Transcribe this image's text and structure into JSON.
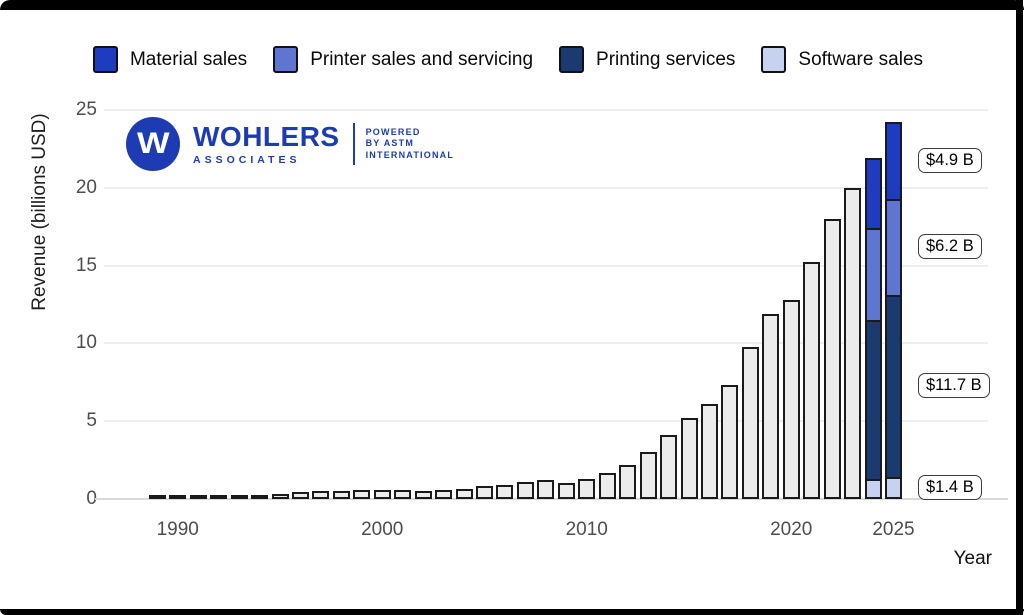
{
  "frame": {
    "border_color": "#000000",
    "background": "#ffffff"
  },
  "legend": {
    "items": [
      {
        "label": "Material sales",
        "color": "#1e3cbf"
      },
      {
        "label": "Printer sales and servicing",
        "color": "#5e76d2"
      },
      {
        "label": "Printing services",
        "color": "#1b3a6f"
      },
      {
        "label": "Software sales",
        "color": "#c7d2f1"
      }
    ]
  },
  "logo": {
    "mark": "W",
    "brand": "WOHLERS",
    "sub": "ASSOCIATES",
    "tagline_lines": [
      "POWERED",
      "BY ASTM",
      "INTERNATIONAL"
    ],
    "color": "#1d3cb3"
  },
  "chart_data": {
    "type": "bar",
    "stacked_tail": true,
    "title": "",
    "xlabel": "Year",
    "ylabel": "Revenue (billions USD)",
    "ylim": [
      0,
      25
    ],
    "yticks": [
      0,
      5,
      10,
      15,
      20,
      25
    ],
    "xtick_years": [
      1990,
      2000,
      2010,
      2020,
      2025
    ],
    "grid": "horizontal",
    "bar_fill_default": "#ececec",
    "bar_stroke": "#1a1a1a",
    "bars": [
      {
        "year": 1989,
        "total": 0.05
      },
      {
        "year": 1990,
        "total": 0.1
      },
      {
        "year": 1991,
        "total": 0.13
      },
      {
        "year": 1992,
        "total": 0.15
      },
      {
        "year": 1993,
        "total": 0.2
      },
      {
        "year": 1994,
        "total": 0.27
      },
      {
        "year": 1995,
        "total": 0.3
      },
      {
        "year": 1996,
        "total": 0.45
      },
      {
        "year": 1997,
        "total": 0.5
      },
      {
        "year": 1998,
        "total": 0.5
      },
      {
        "year": 1999,
        "total": 0.55
      },
      {
        "year": 2000,
        "total": 0.6
      },
      {
        "year": 2001,
        "total": 0.55
      },
      {
        "year": 2002,
        "total": 0.5
      },
      {
        "year": 2003,
        "total": 0.55
      },
      {
        "year": 2004,
        "total": 0.65
      },
      {
        "year": 2005,
        "total": 0.85
      },
      {
        "year": 2006,
        "total": 0.9
      },
      {
        "year": 2007,
        "total": 1.1
      },
      {
        "year": 2008,
        "total": 1.2
      },
      {
        "year": 2009,
        "total": 1.05
      },
      {
        "year": 2010,
        "total": 1.3
      },
      {
        "year": 2011,
        "total": 1.7
      },
      {
        "year": 2012,
        "total": 2.2
      },
      {
        "year": 2013,
        "total": 3.0
      },
      {
        "year": 2014,
        "total": 4.1
      },
      {
        "year": 2015,
        "total": 5.2
      },
      {
        "year": 2016,
        "total": 6.1
      },
      {
        "year": 2017,
        "total": 7.3
      },
      {
        "year": 2018,
        "total": 9.8
      },
      {
        "year": 2019,
        "total": 11.9
      },
      {
        "year": 2020,
        "total": 12.8
      },
      {
        "year": 2021,
        "total": 15.2
      },
      {
        "year": 2022,
        "total": 18.0
      },
      {
        "year": 2023,
        "total": 20.0
      },
      {
        "year": 2024,
        "total": 21.9,
        "stack": [
          {
            "series": "Software sales",
            "value": 1.3
          },
          {
            "series": "Printing services",
            "value": 10.2
          },
          {
            "series": "Printer sales and servicing",
            "value": 5.9
          },
          {
            "series": "Material sales",
            "value": 4.5
          }
        ]
      },
      {
        "year": 2025,
        "total": 24.2,
        "annotated": true,
        "stack": [
          {
            "series": "Software sales",
            "value": 1.4
          },
          {
            "series": "Printing services",
            "value": 11.7
          },
          {
            "series": "Printer sales and servicing",
            "value": 6.2
          },
          {
            "series": "Material sales",
            "value": 4.9
          }
        ]
      }
    ],
    "annotations": [
      {
        "text": "$4.9 B",
        "series": "Material sales",
        "year": 2025
      },
      {
        "text": "$6.2 B",
        "series": "Printer sales and servicing",
        "year": 2025
      },
      {
        "text": "$11.7 B",
        "series": "Printing services",
        "year": 2025
      },
      {
        "text": "$1.4 B",
        "series": "Software sales",
        "year": 2025
      }
    ]
  }
}
